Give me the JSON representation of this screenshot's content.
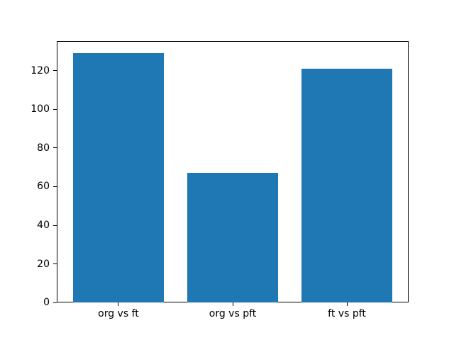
{
  "chart_data": {
    "type": "bar",
    "title": "",
    "xlabel": "",
    "ylabel": "",
    "categories": [
      "org vs ft",
      "org vs pft",
      "ft vs pft"
    ],
    "values": [
      129,
      67,
      121
    ],
    "bar_color": "#1f77b4",
    "bar_width_fraction": 0.8,
    "xlim": [
      -0.54,
      2.54
    ],
    "ylim": [
      0,
      135.45
    ],
    "yticks": [
      0,
      20,
      40,
      60,
      80,
      100,
      120
    ],
    "grid": false,
    "legend": null,
    "axes_color": "#000000",
    "background_color": "#ffffff"
  }
}
